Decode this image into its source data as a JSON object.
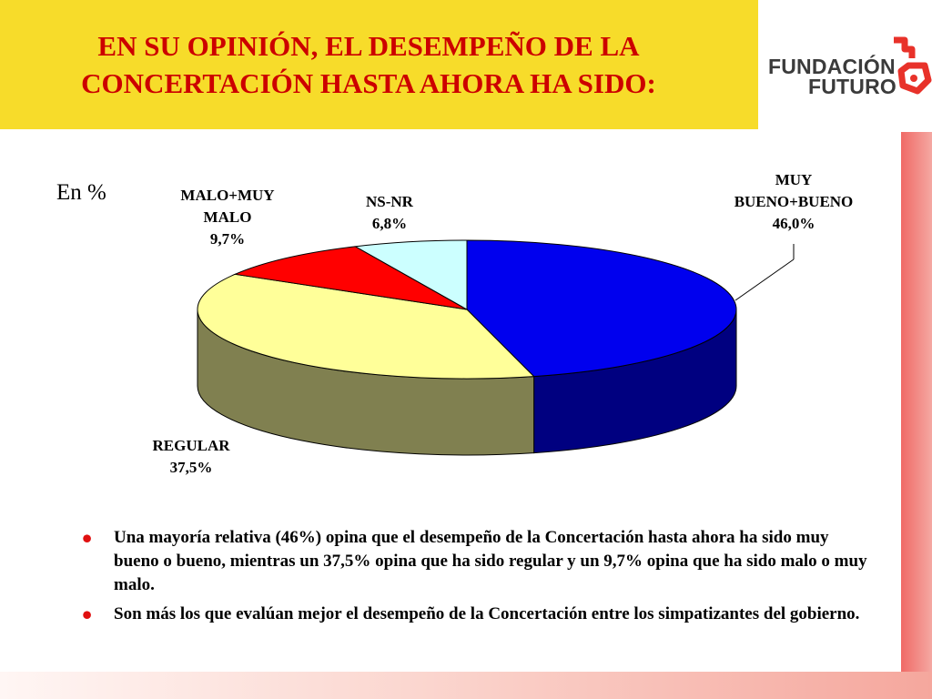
{
  "header": {
    "title_lines": [
      "EN SU OPINIÓN, EL DESEMPEÑO DE LA",
      "CONCERTACIÓN HASTA AHORA HA SIDO:"
    ],
    "background_color": "#f7dc2a",
    "title_color": "#cc0000"
  },
  "logo": {
    "line1": "FUNDACIÓN",
    "line2": "FUTURO",
    "icon": "key-icon",
    "color": "#e8322a"
  },
  "chart_data": {
    "type": "pie",
    "unit_label": "En %",
    "categories": [
      "MUY BUENO+BUENO",
      "REGULAR",
      "MALO+MUY MALO",
      "NS-NR"
    ],
    "values": [
      46.0,
      37.5,
      9.7,
      6.8
    ],
    "colors": [
      "#0000ee",
      "#ffff99",
      "#ff0000",
      "#ccffff"
    ],
    "side_colors": [
      "#000080",
      "#808050",
      "#800000",
      "#668080"
    ],
    "labels": [
      {
        "lines": [
          "MUY",
          "BUENO+BUENO",
          "46,0%"
        ]
      },
      {
        "lines": [
          "REGULAR",
          "37,5%"
        ]
      },
      {
        "lines": [
          "MALO+MUY",
          "MALO",
          "9,7%"
        ]
      },
      {
        "lines": [
          "NS-NR",
          "6,8%"
        ]
      }
    ]
  },
  "bullets": [
    "Una mayoría relativa (46%) opina que el desempeño de la Concertación hasta ahora ha sido muy bueno o bueno, mientras un 37,5% opina que ha sido regular  y un 9,7% opina que ha sido malo o muy malo.",
    "Son más los que evalúan mejor el desempeño de la Concertación entre los simpatizantes del gobierno."
  ]
}
